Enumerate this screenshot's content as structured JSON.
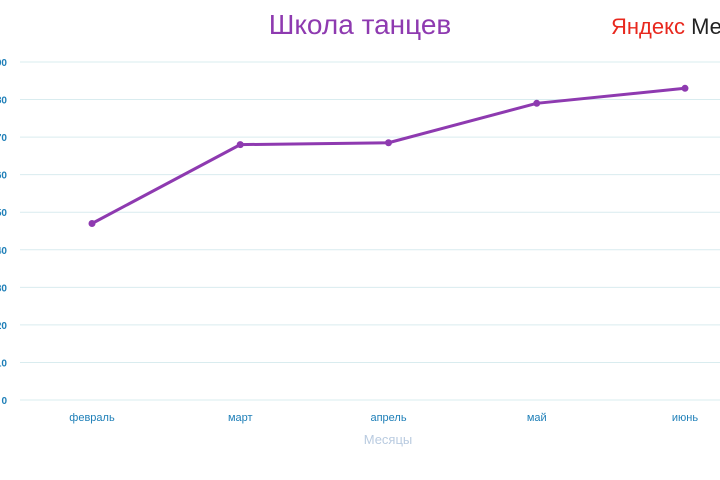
{
  "chart_data": {
    "type": "line",
    "title": "Школа танцев",
    "xlabel": "Месяцы",
    "ylabel": "",
    "categories": [
      "февраль",
      "март",
      "апрель",
      "май",
      "июнь"
    ],
    "series": [
      {
        "values": [
          47,
          68,
          68.5,
          79,
          83
        ]
      }
    ],
    "ylim": [
      0,
      90
    ],
    "grid": true,
    "line_color": "#8e3ab0",
    "grid_color": "#d9ecef"
  },
  "logo": {
    "red": "Яндекс",
    "black": " Метрика"
  }
}
